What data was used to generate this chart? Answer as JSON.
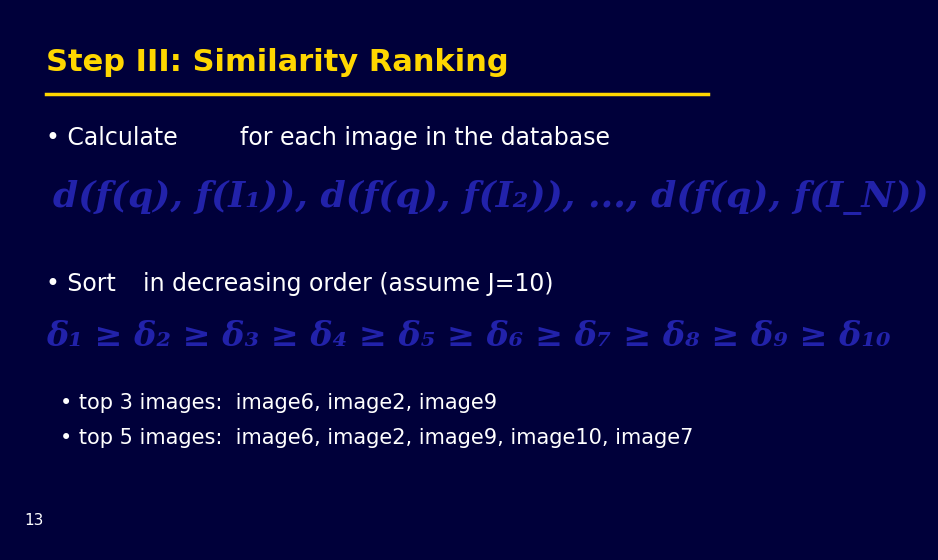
{
  "bg_color": "#00003A",
  "title": "Step III: Similarity Ranking",
  "title_color": "#FFD700",
  "title_fontsize": 22,
  "divider_color": "#FFD700",
  "bullet_color": "#FFFFFF",
  "bullet_fontsize": 17,
  "bullet1_prefix": "• Calculate",
  "bullet1_suffix": "for each image in the database",
  "formula1": "d(f(q), f(I₁)), d(f(q), f(I₂)), ..., d(f(q), f(I_N))",
  "formula1_color": "#2222AA",
  "bullet2_prefix": "• Sort",
  "bullet2_suffix": "in decreasing order (assume J=10)",
  "formula2": "δ₁ ≥ δ₂ ≥ δ₃ ≥ δ₄ ≥ δ₅ ≥ δ₆ ≥ δ₇ ≥ δ₈ ≥ δ₉ ≥ δ₁₀",
  "formula2_color": "#2222AA",
  "sub_bullet1": "• top 3 images:  image6, image2, image9",
  "sub_bullet2": "• top 5 images:  image6, image2, image9, image10, image7",
  "sub_bullet_color": "#FFFFFF",
  "sub_bullet_fontsize": 15,
  "page_number": "13",
  "page_number_color": "#FFFFFF",
  "page_number_fontsize": 11
}
